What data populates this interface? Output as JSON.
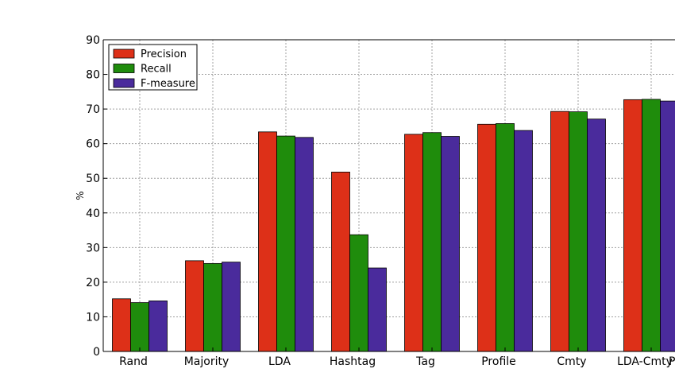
{
  "chart_data": {
    "type": "bar",
    "categories": [
      "Rand",
      "Majority",
      "LDA",
      "Hashtag",
      "Tag",
      "Profile",
      "Cmty",
      "LDA-Cmty",
      "P"
    ],
    "series": [
      {
        "name": "Precision",
        "color": "#dd3018",
        "values": [
          15.2,
          26.2,
          63.4,
          51.8,
          62.7,
          65.6,
          69.3,
          72.7,
          null
        ]
      },
      {
        "name": "Recall",
        "color": "#1f8c0c",
        "values": [
          14.1,
          25.4,
          62.2,
          33.7,
          63.2,
          65.8,
          69.2,
          72.8,
          null
        ]
      },
      {
        "name": "F-measure",
        "color": "#4a2b9c",
        "values": [
          14.6,
          25.8,
          61.8,
          24.1,
          62.1,
          63.8,
          67.1,
          72.3,
          null
        ]
      }
    ],
    "title": "",
    "xlabel": "",
    "ylabel": "%",
    "ylim": [
      0,
      90
    ],
    "yticks": [
      "0",
      "10",
      "20",
      "30",
      "40",
      "50",
      "60",
      "70",
      "80",
      "90"
    ],
    "grid": true,
    "legend_position": "top-left"
  }
}
